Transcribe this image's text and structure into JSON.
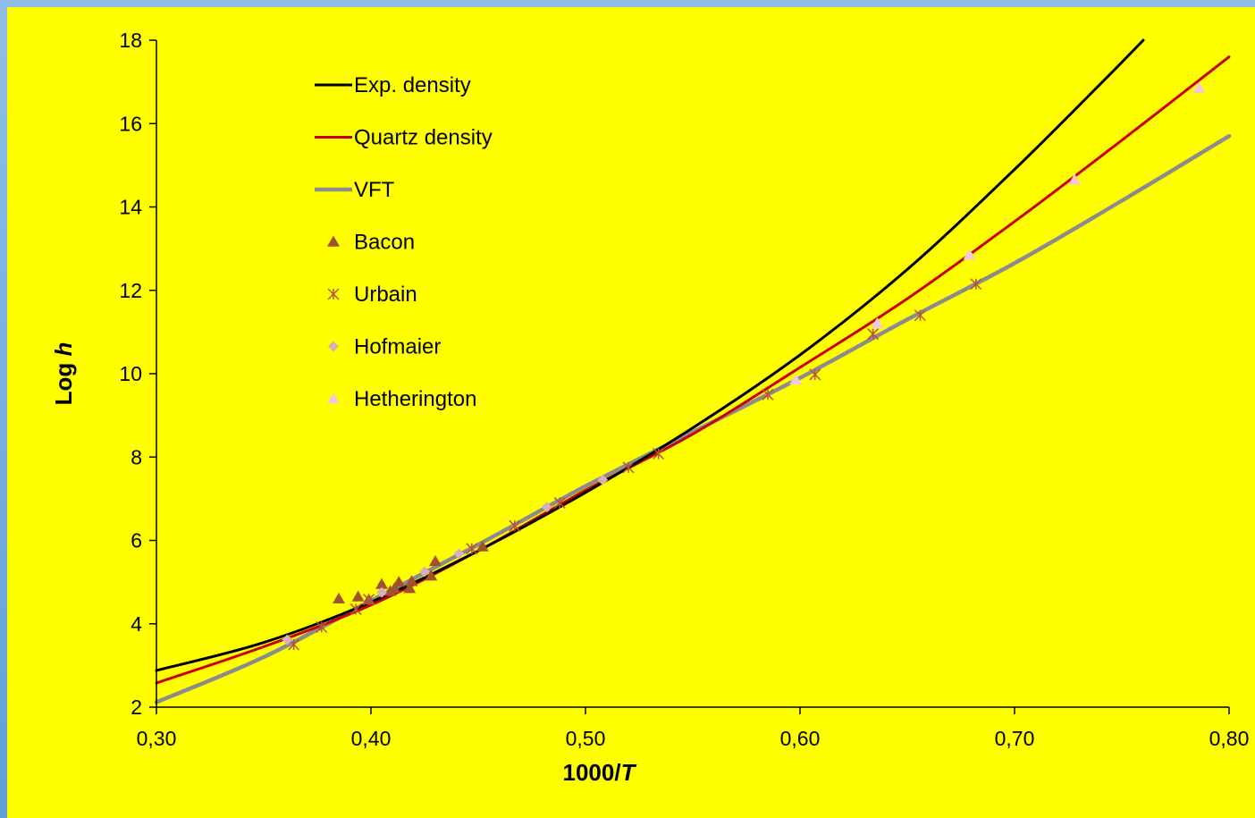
{
  "colors": {
    "background": "#ffff00",
    "exp_density": "#000000",
    "quartz_density": "#cc0000",
    "vft": "#8c8c8c",
    "bacon": "#a0522d",
    "urbain": "#b5533c",
    "hofmaier": "#d8b0b8",
    "hetherington": "#f2c8dc"
  },
  "chart_data": {
    "type": "line",
    "xlabel_main": "1000/",
    "xlabel_var": "T",
    "ylabel_main": "Log ",
    "ylabel_var": "h",
    "xlim": [
      0.3,
      0.8
    ],
    "ylim": [
      2,
      18
    ],
    "x_ticks": [
      0.3,
      0.4,
      0.5,
      0.6,
      0.7,
      0.8
    ],
    "x_tick_labels": [
      "0,30",
      "0,40",
      "0,50",
      "0,60",
      "0,70",
      "0,80"
    ],
    "y_ticks": [
      2,
      4,
      6,
      8,
      10,
      12,
      14,
      16,
      18
    ],
    "y_tick_labels": [
      "2",
      "4",
      "6",
      "8",
      "10",
      "12",
      "14",
      "16",
      "18"
    ],
    "grid": false,
    "legend_position": "top-left",
    "series": [
      {
        "name": "Exp. density",
        "kind": "line",
        "color": "#000000",
        "points": [
          [
            0.3,
            2.88
          ],
          [
            0.35,
            3.55
          ],
          [
            0.4,
            4.52
          ],
          [
            0.45,
            5.75
          ],
          [
            0.5,
            7.15
          ],
          [
            0.55,
            8.7
          ],
          [
            0.6,
            10.45
          ],
          [
            0.65,
            12.5
          ],
          [
            0.7,
            14.9
          ],
          [
            0.74,
            16.95
          ],
          [
            0.76,
            18.0
          ]
        ]
      },
      {
        "name": "Quartz density",
        "kind": "line",
        "color": "#cc0000",
        "points": [
          [
            0.3,
            2.58
          ],
          [
            0.35,
            3.45
          ],
          [
            0.4,
            4.45
          ],
          [
            0.45,
            5.75
          ],
          [
            0.5,
            7.2
          ],
          [
            0.55,
            8.55
          ],
          [
            0.6,
            10.15
          ],
          [
            0.65,
            11.8
          ],
          [
            0.7,
            13.65
          ],
          [
            0.75,
            15.6
          ],
          [
            0.8,
            17.6
          ]
        ]
      },
      {
        "name": "VFT",
        "kind": "line",
        "color": "#8c8c8c",
        "points": [
          [
            0.3,
            2.12
          ],
          [
            0.35,
            3.2
          ],
          [
            0.4,
            4.55
          ],
          [
            0.45,
            5.9
          ],
          [
            0.5,
            7.3
          ],
          [
            0.55,
            8.6
          ],
          [
            0.6,
            9.9
          ],
          [
            0.65,
            11.3
          ],
          [
            0.7,
            12.65
          ],
          [
            0.75,
            14.15
          ],
          [
            0.8,
            15.7
          ]
        ]
      },
      {
        "name": "Bacon",
        "kind": "marker",
        "marker": "triangle",
        "color": "#a0522d",
        "points": [
          [
            0.385,
            4.6
          ],
          [
            0.394,
            4.65
          ],
          [
            0.399,
            4.58
          ],
          [
            0.405,
            4.95
          ],
          [
            0.409,
            4.78
          ],
          [
            0.411,
            4.85
          ],
          [
            0.413,
            5.0
          ],
          [
            0.418,
            4.85
          ],
          [
            0.419,
            5.02
          ],
          [
            0.428,
            5.15
          ],
          [
            0.43,
            5.5
          ],
          [
            0.452,
            5.85
          ]
        ]
      },
      {
        "name": "Urbain",
        "kind": "marker",
        "marker": "asterisk",
        "color": "#b5533c",
        "points": [
          [
            0.364,
            3.5
          ],
          [
            0.377,
            3.92
          ],
          [
            0.393,
            4.35
          ],
          [
            0.399,
            4.58
          ],
          [
            0.447,
            5.8
          ],
          [
            0.467,
            6.35
          ],
          [
            0.488,
            6.9
          ],
          [
            0.52,
            7.75
          ],
          [
            0.534,
            8.08
          ],
          [
            0.585,
            9.5
          ],
          [
            0.607,
            9.98
          ],
          [
            0.634,
            10.95
          ],
          [
            0.656,
            11.4
          ],
          [
            0.682,
            12.15
          ]
        ]
      },
      {
        "name": "Hofmaier",
        "kind": "marker",
        "marker": "diamond",
        "color": "#d8b0b8",
        "points": [
          [
            0.361,
            3.62
          ],
          [
            0.405,
            4.75
          ],
          [
            0.425,
            5.25
          ],
          [
            0.441,
            5.68
          ],
          [
            0.482,
            6.8
          ],
          [
            0.508,
            7.45
          ]
        ]
      },
      {
        "name": "Hetherington",
        "kind": "marker",
        "marker": "triangle",
        "color": "#f2c8dc",
        "points": [
          [
            0.598,
            9.85
          ],
          [
            0.636,
            11.2
          ],
          [
            0.679,
            12.85
          ],
          [
            0.728,
            14.65
          ],
          [
            0.786,
            16.85
          ]
        ]
      }
    ]
  }
}
